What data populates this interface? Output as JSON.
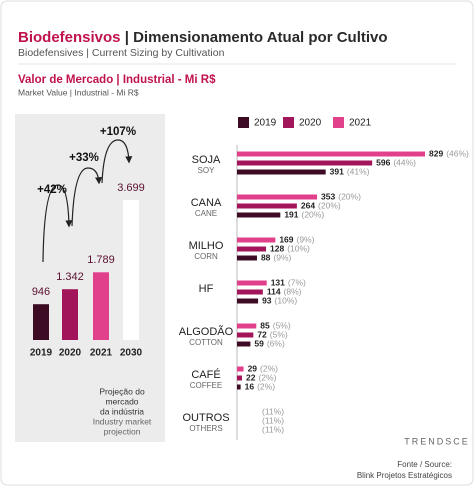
{
  "header": {
    "title_highlight": "Biodefensivos",
    "title_rest": "| Dimensionamento Atual por Cultivo",
    "subtitle": "Biodefensives | Current Sizing by Cultivation",
    "section_title": "Valor de Mercado | Industrial - Mi R$",
    "section_subtitle": "Market Value | Industrial - Mi R$"
  },
  "chart_data": [
    {
      "type": "bar",
      "categories": [
        "2019",
        "2020",
        "2021",
        "2030"
      ],
      "values": [
        946,
        1342,
        1789,
        3699
      ],
      "value_labels": [
        "946",
        "1.342",
        "1.789",
        "3.699"
      ],
      "colors": [
        "#3d0c24",
        "#a3155a",
        "#e0418a",
        "#ffffff"
      ],
      "annotations": [
        "+42%",
        "+33%",
        "+107%"
      ],
      "note": [
        "Projeção do",
        "mercado",
        "da indústria"
      ],
      "note_en": [
        "Industry market",
        "projection"
      ]
    },
    {
      "type": "hbar",
      "categories": [
        "SOJA",
        "CANA",
        "MILHO",
        "HF",
        "ALGODÃO",
        "CAFÉ",
        "OUTROS"
      ],
      "categories_en": [
        "SOY",
        "CANE",
        "CORN",
        null,
        "COTTON",
        "COFFEE",
        "OTHERS"
      ],
      "series": [
        {
          "name": "2019",
          "color": "#3d0c24",
          "values": [
            391,
            191,
            88,
            93,
            59,
            16,
            null
          ],
          "share_labels": [
            "(41%)",
            "(20%)",
            "(9%)",
            "(10%)",
            "(6%)",
            "(2%)",
            "(11%)"
          ]
        },
        {
          "name": "2020",
          "color": "#a3155a",
          "values": [
            596,
            264,
            128,
            114,
            72,
            22,
            null
          ],
          "share_labels": [
            "(44%)",
            "(20%)",
            "(10%)",
            "(8%)",
            "(5%)",
            "(2%)",
            "(11%)"
          ]
        },
        {
          "name": "2021",
          "color": "#e0418a",
          "values": [
            829,
            353,
            169,
            131,
            85,
            29,
            null
          ],
          "share_labels": [
            "(46%)",
            "(20%)",
            "(9%)",
            "(7%)",
            "(5%)",
            "(2%)",
            "(11%)"
          ]
        }
      ]
    }
  ],
  "footer": {
    "logo": "TRENDSCE",
    "source_label": "Fonte / Source:",
    "source": "Blink Projetos Estratégicos"
  }
}
